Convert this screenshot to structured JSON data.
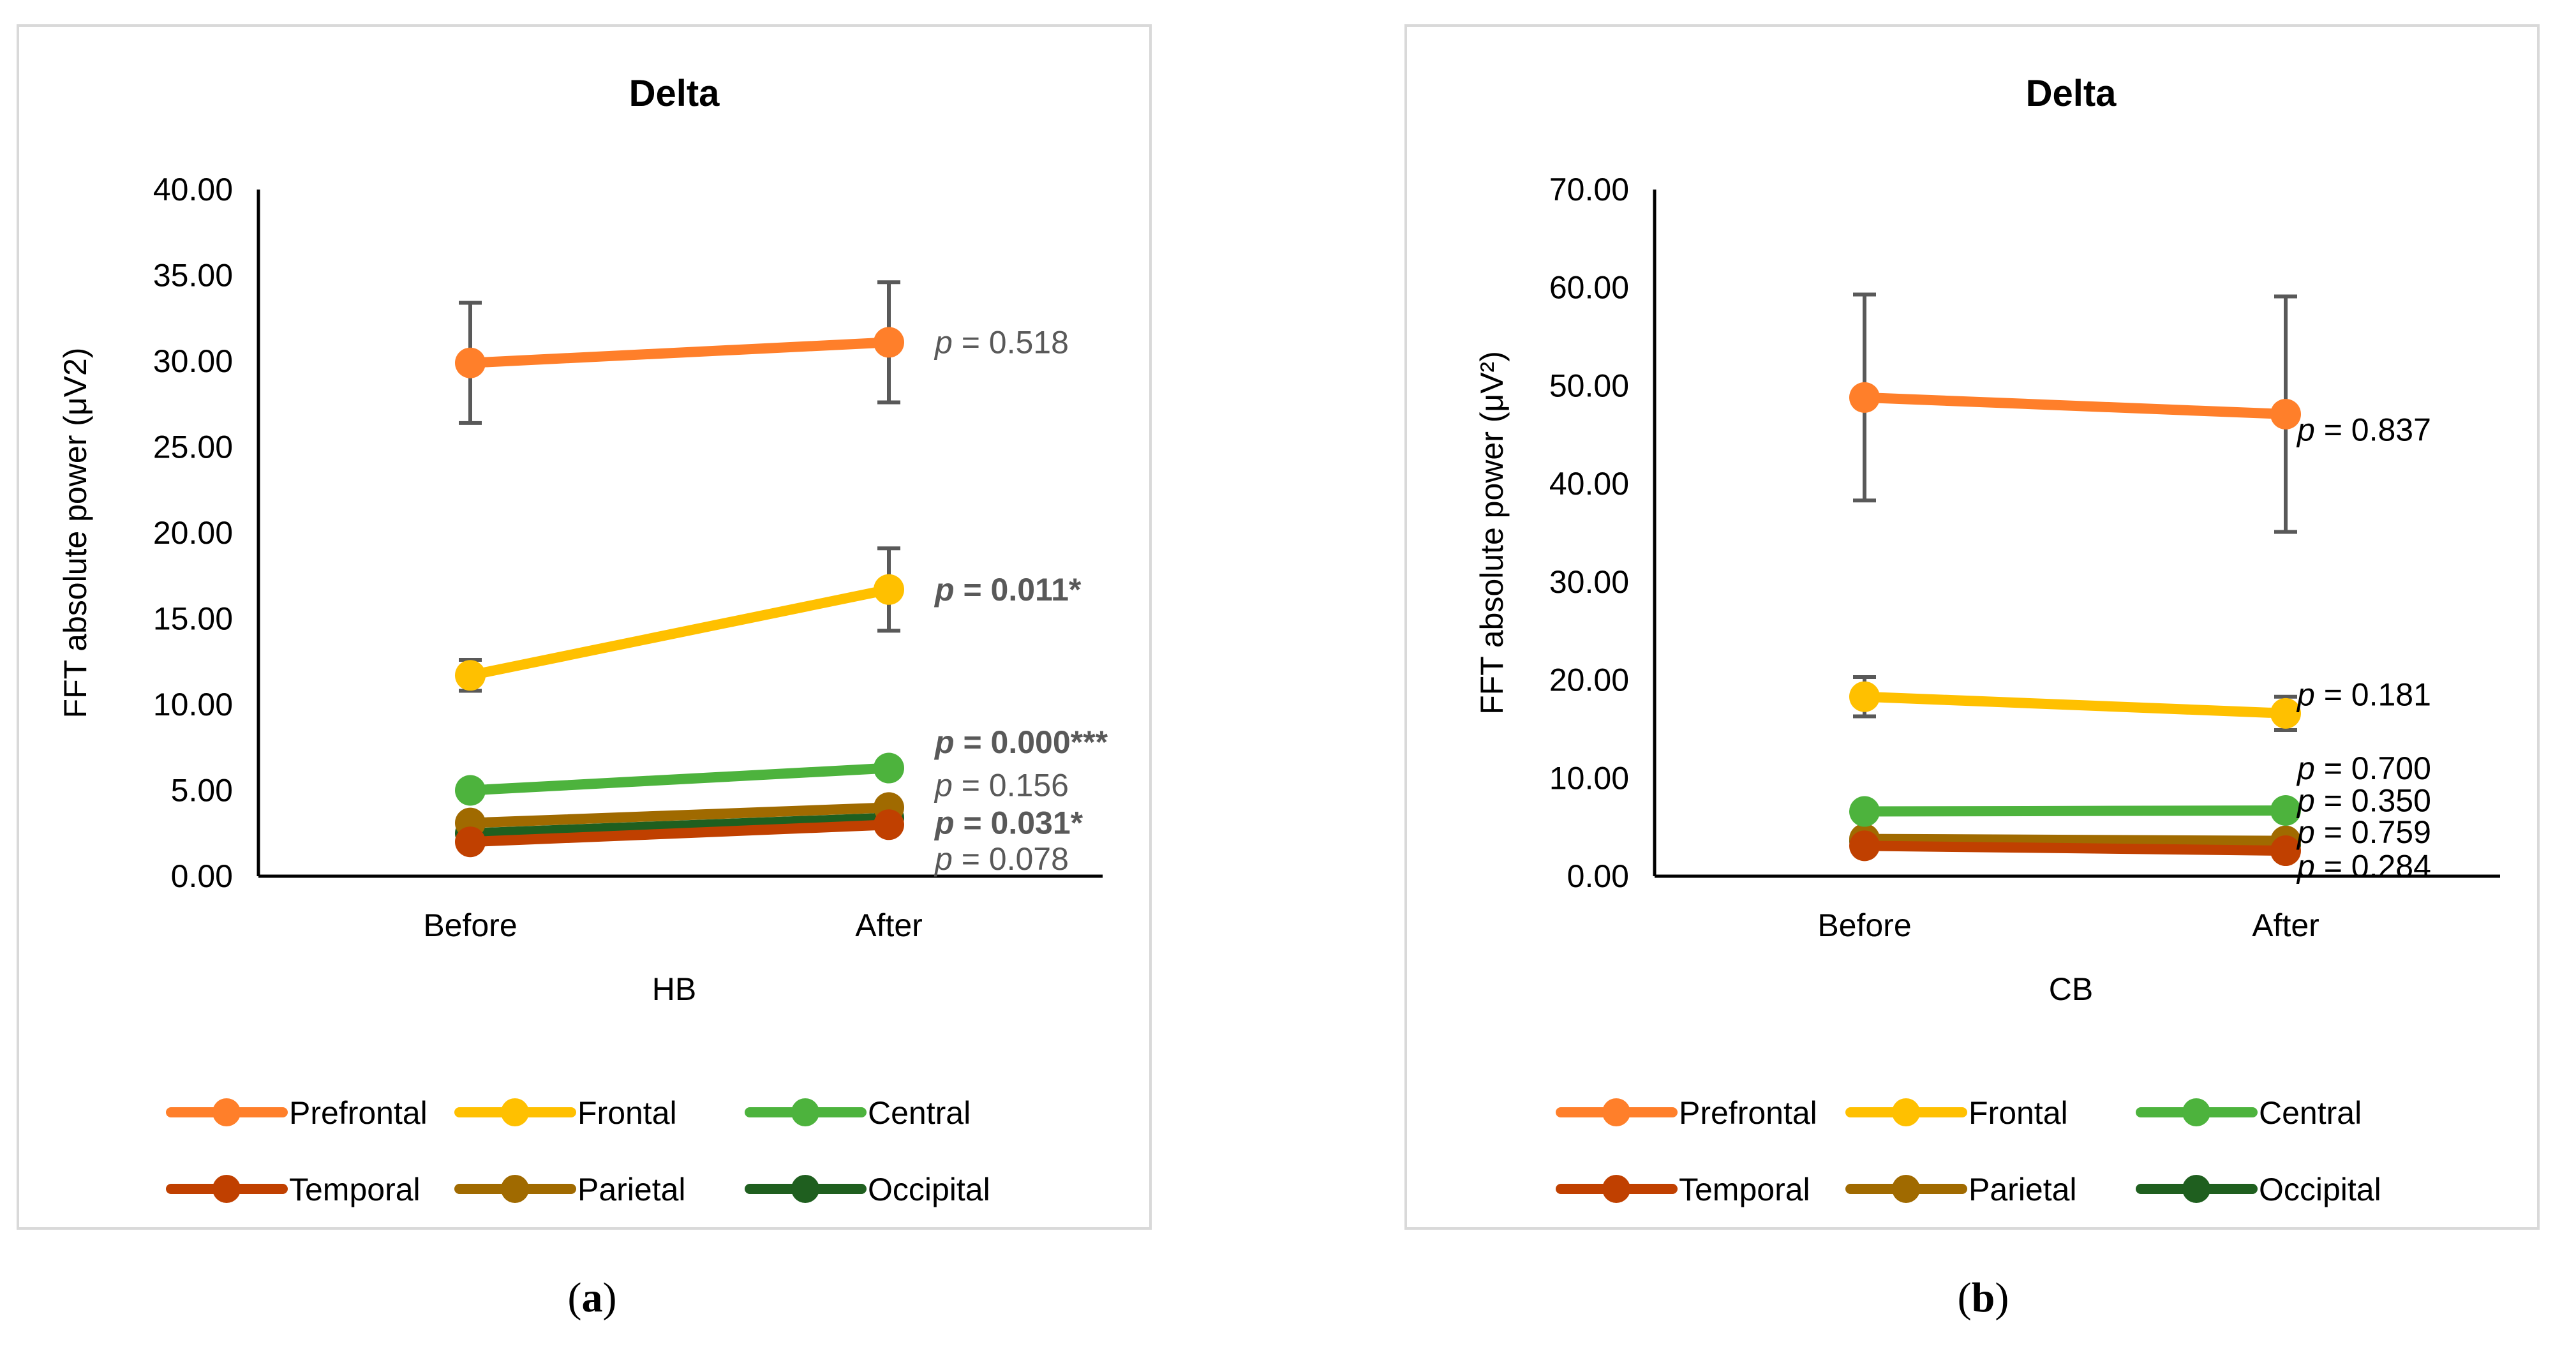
{
  "colors": {
    "Prefrontal": "#ff7f2a",
    "Frontal": "#ffc000",
    "Central": "#4db33d",
    "Temporal": "#c04000",
    "Parietal": "#a06a00",
    "Occipital": "#1f5f1f",
    "error_bar": "#595959",
    "pval_gray": "#595959",
    "pval_black": "#000000"
  },
  "chart_data": [
    {
      "id": "a",
      "type": "line",
      "title": "Delta",
      "xlabel": "HB",
      "ylabel": "FFT absolute power (μV2)",
      "caption_letter": "a",
      "categories": [
        "Before",
        "After"
      ],
      "ylim": [
        0,
        40
      ],
      "ytick_step": 5,
      "ytick_labels": [
        "0.00",
        "5.00",
        "10.00",
        "15.00",
        "20.00",
        "25.00",
        "30.00",
        "35.00",
        "40.00"
      ],
      "series": [
        {
          "name": "Prefrontal",
          "values": [
            29.9,
            31.1
          ],
          "errors": [
            3.5,
            3.5
          ],
          "p_text": "= 0.518",
          "p_bold": false,
          "p_color": "gray",
          "p_y": 31.1
        },
        {
          "name": "Frontal",
          "values": [
            11.7,
            16.7
          ],
          "errors": [
            0.9,
            2.4
          ],
          "p_text": "= 0.011*",
          "p_bold": true,
          "p_color": "gray",
          "p_y": 16.7
        },
        {
          "name": "Central",
          "values": [
            5.0,
            6.3
          ],
          "errors": [
            0,
            0
          ],
          "p_text": "= 0.000***",
          "p_bold": true,
          "p_color": "gray",
          "p_y": 7.8
        },
        {
          "name": "Temporal",
          "values": [
            2.0,
            3.0
          ],
          "errors": [
            0,
            0
          ],
          "p_text": "= 0.078",
          "p_bold": false,
          "p_color": "gray",
          "p_y": 1.0
        },
        {
          "name": "Parietal",
          "values": [
            3.1,
            4.0
          ],
          "errors": [
            0,
            0
          ],
          "p_text": "= 0.156",
          "p_bold": false,
          "p_color": "gray",
          "p_y": 5.3
        },
        {
          "name": "Occipital",
          "values": [
            2.5,
            3.4
          ],
          "errors": [
            0,
            0
          ],
          "p_text": "= 0.031*",
          "p_bold": true,
          "p_color": "gray",
          "p_y": 3.1
        }
      ],
      "legend": [
        "Prefrontal",
        "Frontal",
        "Central",
        "Temporal",
        "Parietal",
        "Occipital"
      ],
      "legend_position": "bottom"
    },
    {
      "id": "b",
      "type": "line",
      "title": "Delta",
      "xlabel": "CB",
      "ylabel": "FFT absolute power (μV²)",
      "caption_letter": "b",
      "categories": [
        "Before",
        "After"
      ],
      "ylim": [
        0,
        70
      ],
      "ytick_step": 10,
      "ytick_labels": [
        "0.00",
        "10.00",
        "20.00",
        "30.00",
        "40.00",
        "50.00",
        "60.00",
        "70.00"
      ],
      "series": [
        {
          "name": "Prefrontal",
          "values": [
            48.8,
            47.1
          ],
          "errors": [
            10.5,
            12.0
          ],
          "p_text": "= 0.837",
          "p_bold": false,
          "p_color": "black",
          "p_y": 45.5
        },
        {
          "name": "Frontal",
          "values": [
            18.3,
            16.6
          ],
          "errors": [
            2.0,
            1.7
          ],
          "p_text": "= 0.181",
          "p_bold": false,
          "p_color": "black",
          "p_y": 18.5
        },
        {
          "name": "Central",
          "values": [
            6.6,
            6.7
          ],
          "errors": [
            0,
            0
          ],
          "p_text": "= 0.700",
          "p_bold": false,
          "p_color": "black",
          "p_y": 11.0
        },
        {
          "name": "Temporal",
          "values": [
            3.1,
            2.6
          ],
          "errors": [
            0,
            0
          ],
          "p_text": "= 0.284",
          "p_bold": false,
          "p_color": "black",
          "p_y": 1.0
        },
        {
          "name": "Parietal",
          "values": [
            3.8,
            3.6
          ],
          "errors": [
            0,
            0
          ],
          "p_text": "= 0.759",
          "p_bold": false,
          "p_color": "black",
          "p_y": 4.5
        },
        {
          "name": "Occipital",
          "values": [
            3.6,
            3.2
          ],
          "errors": [
            0,
            0
          ],
          "p_text": "= 0.350",
          "p_bold": false,
          "p_color": "black",
          "p_y": 7.7
        }
      ],
      "legend": [
        "Prefrontal",
        "Frontal",
        "Central",
        "Temporal",
        "Parietal",
        "Occipital"
      ],
      "legend_position": "bottom"
    }
  ]
}
